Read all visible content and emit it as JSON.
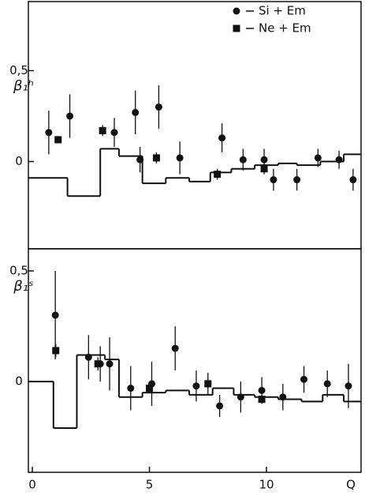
{
  "chart_data": [
    {
      "type": "errorbar",
      "ylabel": "β₁ʰ",
      "xlim": [
        -0.17,
        14.04
      ],
      "ylim": [
        -0.48,
        0.88
      ],
      "yticks": [
        {
          "value": 0.5,
          "label": "0,5"
        },
        0
      ],
      "legend": "upper right",
      "series": [
        {
          "name": "Si + Em",
          "marker": "circle",
          "color": "#111",
          "x": [
            0.7,
            1.6,
            3.5,
            4.4,
            4.6,
            5.4,
            6.3,
            8.1,
            9.0,
            9.9,
            10.3,
            11.3,
            12.2,
            13.1,
            13.7
          ],
          "values": [
            0.16,
            0.25,
            0.16,
            0.27,
            0.01,
            0.3,
            0.02,
            0.13,
            0.01,
            0.01,
            -0.1,
            -0.1,
            0.02,
            0.01,
            -0.1
          ],
          "errors": [
            0.12,
            0.12,
            0.08,
            0.12,
            0.07,
            0.12,
            0.09,
            0.08,
            0.06,
            0.06,
            0.06,
            0.06,
            0.05,
            0.05,
            0.06
          ]
        },
        {
          "name": "Ne + Em",
          "marker": "square",
          "color": "#111",
          "x": [
            1.1,
            3.0,
            5.3,
            7.9,
            9.9
          ],
          "values": [
            0.12,
            0.17,
            0.02,
            -0.07,
            -0.04
          ],
          "errors": [
            0.02,
            0.03,
            0.03,
            0.03,
            0.03
          ]
        }
      ],
      "steps": {
        "bins": [
          -0.17,
          1.5,
          2.9,
          3.7,
          4.7,
          5.7,
          6.7,
          7.6,
          8.5,
          9.5,
          10.5,
          11.3,
          12.3,
          13.3,
          14.04
        ],
        "values": [
          -0.09,
          -0.19,
          0.07,
          0.03,
          -0.12,
          -0.09,
          -0.11,
          -0.06,
          -0.04,
          -0.02,
          -0.01,
          -0.02,
          0.0,
          0.04
        ]
      }
    },
    {
      "type": "errorbar",
      "ylabel": "β₁ˢ",
      "xlabel": "Q",
      "xlim": [
        -0.17,
        14.04
      ],
      "ylim": [
        -0.41,
        0.6
      ],
      "xticks": [
        0,
        5,
        10
      ],
      "yticks": [
        {
          "value": 0.5,
          "label": "0,5"
        },
        0
      ],
      "series": [
        {
          "name": "Si + Em",
          "marker": "circle",
          "color": "#111",
          "x": [
            0.98,
            2.4,
            2.9,
            3.3,
            4.2,
            5.1,
            6.1,
            7.0,
            7.5,
            8.0,
            8.9,
            9.8,
            10.7,
            11.6,
            12.6,
            13.5
          ],
          "values": [
            0.3,
            0.11,
            0.08,
            0.08,
            -0.03,
            -0.01,
            0.15,
            -0.02,
            -0.01,
            -0.11,
            -0.07,
            -0.04,
            -0.07,
            0.01,
            -0.01,
            -0.02
          ],
          "errors": [
            0.2,
            0.1,
            0.08,
            0.12,
            0.1,
            0.1,
            0.1,
            0.07,
            0.05,
            0.05,
            0.07,
            0.06,
            0.06,
            0.06,
            0.06,
            0.1
          ]
        },
        {
          "name": "Ne + Em",
          "marker": "square",
          "color": "#111",
          "x": [
            1.0,
            2.8,
            5.0,
            7.5,
            9.8
          ],
          "values": [
            0.14,
            0.08,
            -0.03,
            -0.01,
            -0.08
          ],
          "errors": [
            0.03,
            0.03,
            0.02,
            0.02,
            0.02
          ]
        }
      ],
      "steps": {
        "bins": [
          -0.17,
          0.9,
          1.9,
          3.1,
          3.7,
          4.7,
          5.7,
          6.7,
          7.7,
          8.6,
          9.5,
          10.5,
          11.5,
          12.4,
          13.3,
          14.04
        ],
        "values": [
          0.0,
          -0.21,
          0.12,
          0.1,
          -0.07,
          -0.05,
          -0.04,
          -0.06,
          -0.03,
          -0.06,
          -0.07,
          -0.08,
          -0.09,
          -0.06,
          -0.09
        ]
      }
    }
  ]
}
